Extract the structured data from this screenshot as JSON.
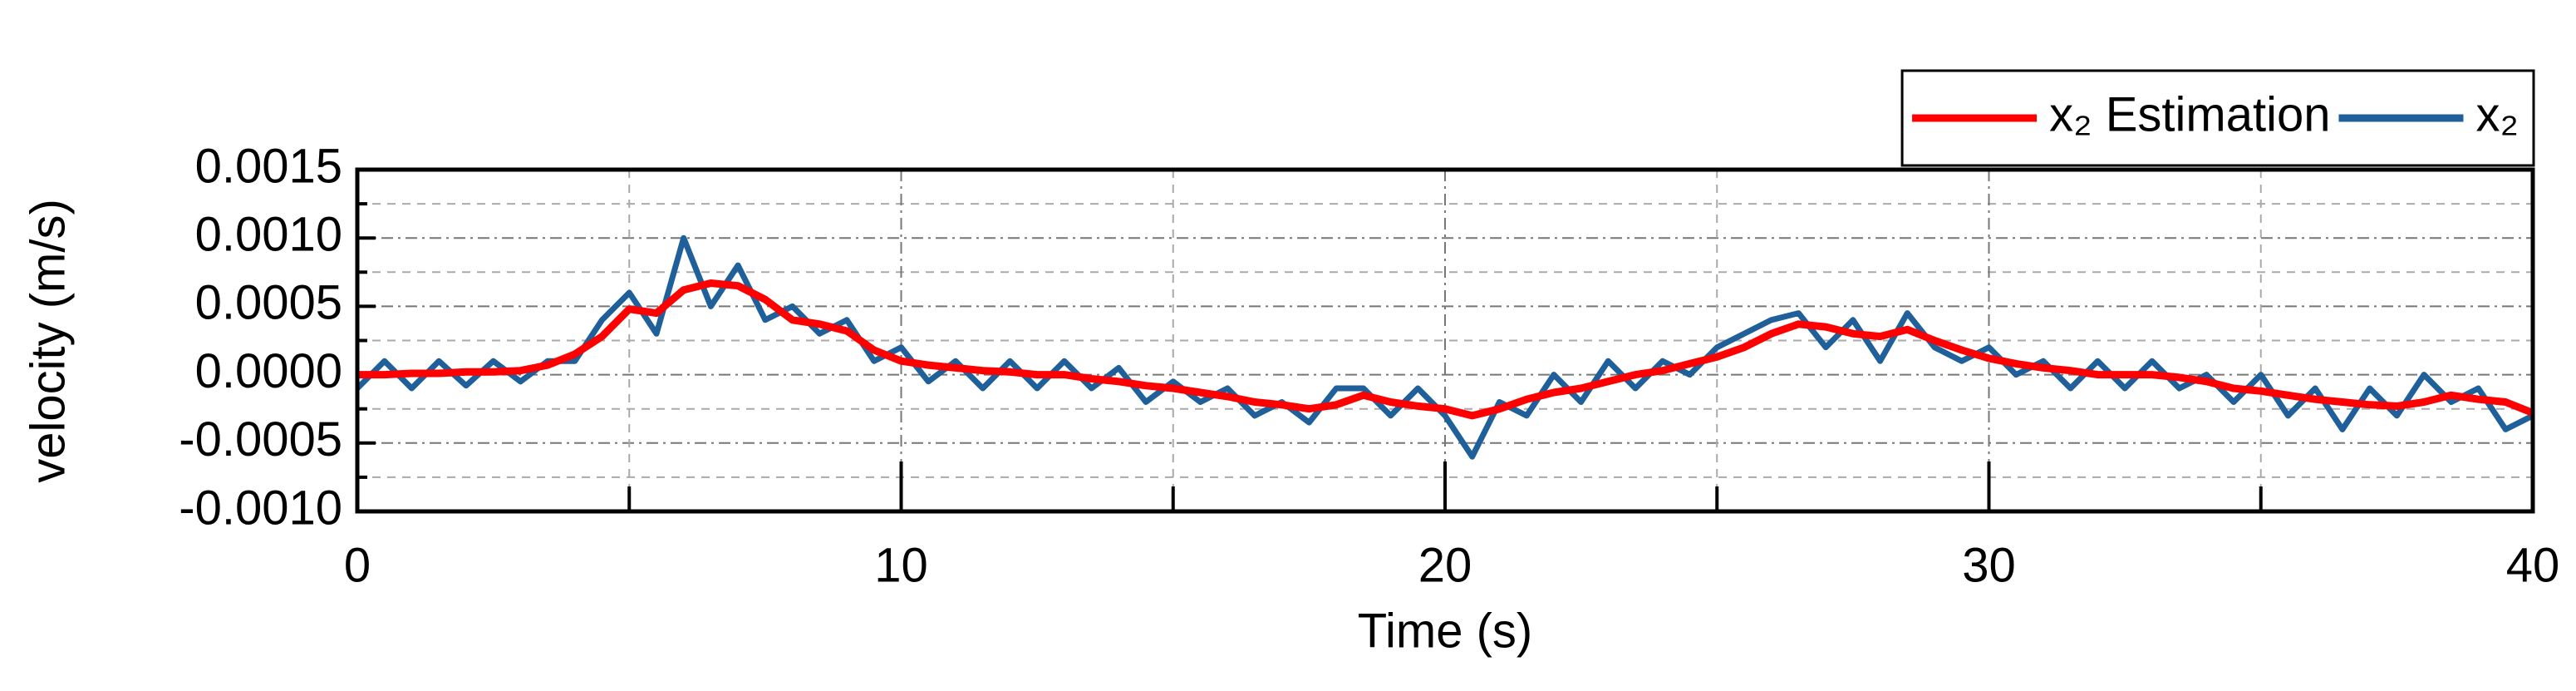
{
  "chart_data": {
    "type": "line",
    "ylabel": "velocity (m/s)",
    "xlabel": "Time (s)",
    "x": [
      0,
      0.5,
      1,
      1.5,
      2,
      2.5,
      3,
      3.5,
      4,
      4.5,
      5,
      5.5,
      6,
      6.5,
      7,
      7.5,
      8,
      8.5,
      9,
      9.5,
      10,
      10.5,
      11,
      11.5,
      12,
      12.5,
      13,
      13.5,
      14,
      14.5,
      15,
      15.5,
      16,
      16.5,
      17,
      17.5,
      18,
      18.5,
      19,
      19.5,
      20,
      20.5,
      21,
      21.5,
      22,
      22.5,
      23,
      23.5,
      24,
      24.5,
      25,
      25.5,
      26,
      26.5,
      27,
      27.5,
      28,
      28.5,
      29,
      29.5,
      30,
      30.5,
      31,
      31.5,
      32,
      32.5,
      33,
      33.5,
      34,
      34.5,
      35,
      35.5,
      36,
      36.5,
      37,
      37.5,
      38,
      38.5,
      39,
      39.5,
      40
    ],
    "series": [
      {
        "name": "x₂ Estimation",
        "color": "#ff0000",
        "values": [
          0,
          0,
          1e-05,
          1e-05,
          2e-05,
          2e-05,
          3e-05,
          7e-05,
          0.00015,
          0.00028,
          0.00048,
          0.00045,
          0.00062,
          0.00067,
          0.00065,
          0.00055,
          0.0004,
          0.00037,
          0.00032,
          0.00018,
          0.0001,
          7e-05,
          5e-05,
          3e-05,
          2e-05,
          0,
          0,
          -3e-05,
          -5e-05,
          -8e-05,
          -0.0001,
          -0.00013,
          -0.00016,
          -0.0002,
          -0.00022,
          -0.00025,
          -0.00022,
          -0.00015,
          -0.0002,
          -0.00023,
          -0.00025,
          -0.0003,
          -0.00025,
          -0.00018,
          -0.00013,
          -0.0001,
          -5e-05,
          0,
          3e-05,
          8e-05,
          0.00013,
          0.0002,
          0.0003,
          0.00037,
          0.00035,
          0.0003,
          0.00028,
          0.00033,
          0.00025,
          0.00018,
          0.00012,
          8e-05,
          5e-05,
          3e-05,
          0,
          0,
          0,
          -2e-05,
          -5e-05,
          -0.0001,
          -0.00012,
          -0.00015,
          -0.00018,
          -0.0002,
          -0.00022,
          -0.00023,
          -0.0002,
          -0.00015,
          -0.00018,
          -0.0002,
          -0.00028
        ]
      },
      {
        "name": "x₂",
        "color": "#1f5f9a",
        "values": [
          -0.0001,
          0.0001,
          -0.0001,
          0.0001,
          -8e-05,
          0.0001,
          -5e-05,
          0.0001,
          0.0001,
          0.0004,
          0.0006,
          0.0003,
          0.001,
          0.0005,
          0.0008,
          0.0004,
          0.0005,
          0.0003,
          0.0004,
          0.0001,
          0.0002,
          -5e-05,
          0.0001,
          -0.0001,
          0.0001,
          -0.0001,
          0.0001,
          -0.0001,
          5e-05,
          -0.0002,
          -5e-05,
          -0.0002,
          -0.0001,
          -0.0003,
          -0.0002,
          -0.00035,
          -0.0001,
          -0.0001,
          -0.0003,
          -0.0001,
          -0.0003,
          -0.0006,
          -0.0002,
          -0.0003,
          0,
          -0.0002,
          0.0001,
          -0.0001,
          0.0001,
          0,
          0.0002,
          0.0003,
          0.0004,
          0.00045,
          0.0002,
          0.0004,
          0.0001,
          0.00045,
          0.0002,
          0.0001,
          0.0002,
          0,
          0.0001,
          -0.0001,
          0.0001,
          -0.0001,
          0.0001,
          -0.0001,
          0,
          -0.0002,
          0,
          -0.0003,
          -0.0001,
          -0.0004,
          -0.0001,
          -0.0003,
          0,
          -0.0002,
          -0.0001,
          -0.0004,
          -0.0003
        ]
      }
    ],
    "xlim": [
      0,
      40
    ],
    "xticks": [
      0,
      10,
      20,
      30,
      40
    ],
    "ylim": [
      -0.001,
      0.0015
    ],
    "yticks": [
      {
        "value": -0.001,
        "label": "-0.0010"
      },
      {
        "value": -0.0005,
        "label": "-0.0005"
      },
      {
        "value": 0,
        "label": "0.0000"
      },
      {
        "value": 0.0005,
        "label": "0.0005"
      },
      {
        "value": 0.001,
        "label": "0.0010"
      },
      {
        "value": 0.0015,
        "label": "0.0015"
      }
    ],
    "grid": true,
    "legend": "top-right"
  }
}
